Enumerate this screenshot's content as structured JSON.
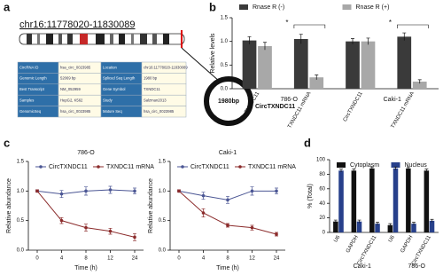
{
  "panel_labels": [
    "a",
    "b",
    "c",
    "d"
  ],
  "diagram": {
    "locus": "chr16:11778020-11830089",
    "table": [
      [
        "CircRNA ID",
        "hsa_circ_0023985",
        "Location",
        "chr16:11778020-11830089"
      ],
      [
        "Genomic Length",
        "52069 bp",
        "Spliced Seq Length",
        "1980 bp"
      ],
      [
        "Best Transcript",
        "NM_052959",
        "Gene Symbol",
        "TXNDC11"
      ],
      [
        "Samples",
        "HepG2, K562",
        "Study",
        "Salzman2013"
      ],
      [
        "GenomicSeq",
        "hsa_circ_0023985",
        "Mature Seq",
        "hsa_circ_0023985"
      ]
    ],
    "circle_size": "1980bp",
    "circle_name": "CircTXNDC11"
  },
  "chart_data": [
    {
      "type": "bar",
      "ylabel": "Relative levels",
      "categories": [
        "CircTXNDC11",
        "TXNDC11 mRNA",
        "CircTXNDC11",
        "TXNDC11 mRNA"
      ],
      "group_labels": [
        "786-O",
        "Caki-1"
      ],
      "series": [
        {
          "name": "Rnase R (-)",
          "color": "#3a3a3a",
          "values": [
            1.02,
            1.05,
            1.0,
            1.1
          ],
          "errors": [
            0.08,
            0.1,
            0.06,
            0.08
          ]
        },
        {
          "name": "Rnase R (+)",
          "color": "#a8a8a8",
          "values": [
            0.9,
            0.24,
            1.0,
            0.15
          ],
          "errors": [
            0.08,
            0.05,
            0.07,
            0.04
          ]
        }
      ],
      "annotations": [
        "*",
        "*"
      ],
      "ylim": [
        0,
        1.5
      ],
      "yticks": [
        {
          "value": 0,
          "label": "0.0"
        },
        {
          "value": 0.5,
          "label": "0.5"
        },
        {
          "value": 1,
          "label": "1.0"
        },
        {
          "value": 1.5,
          "label": "1.5"
        }
      ],
      "legend": "top"
    },
    {
      "type": "line",
      "title": "786-O",
      "xlabel": "Time (h)",
      "ylabel": "Relative abundance",
      "categories": [
        "0",
        "4",
        "8",
        "12",
        "24"
      ],
      "series": [
        {
          "name": "CircTXNDC11",
          "color": "#4b5694",
          "values": [
            1.0,
            0.95,
            1.0,
            1.02,
            1.0
          ],
          "errors": [
            0.02,
            0.06,
            0.07,
            0.06,
            0.05
          ]
        },
        {
          "name": "TXNDC11 mRNA",
          "color": "#8b2b2b",
          "values": [
            1.0,
            0.5,
            0.38,
            0.32,
            0.22
          ],
          "errors": [
            0.02,
            0.05,
            0.06,
            0.05,
            0.06
          ]
        }
      ],
      "ylim": [
        0,
        1.5
      ],
      "yticks": [
        {
          "value": 0,
          "label": "0.0"
        },
        {
          "value": 0.5,
          "label": "0.5"
        },
        {
          "value": 1,
          "label": "1.0"
        },
        {
          "value": 1.5,
          "label": "1.5"
        }
      ],
      "legend": "top"
    },
    {
      "type": "line",
      "title": "Caki-1",
      "xlabel": "Time (h)",
      "ylabel": "Relative abundance",
      "categories": [
        "0",
        "4",
        "8",
        "12",
        "24"
      ],
      "series": [
        {
          "name": "CircTXNDC11",
          "color": "#4b5694",
          "values": [
            1.0,
            0.92,
            0.85,
            1.0,
            1.0
          ],
          "errors": [
            0.02,
            0.06,
            0.06,
            0.07,
            0.05
          ]
        },
        {
          "name": "TXNDC11 mRNA",
          "color": "#8b2b2b",
          "values": [
            1.0,
            0.63,
            0.42,
            0.38,
            0.27
          ],
          "errors": [
            0.02,
            0.07,
            0.03,
            0.04,
            0.03
          ]
        }
      ],
      "ylim": [
        0,
        1.5
      ],
      "yticks": [
        {
          "value": 0,
          "label": "0.0"
        },
        {
          "value": 0.5,
          "label": "0.5"
        },
        {
          "value": 1,
          "label": "1.0"
        },
        {
          "value": 1.5,
          "label": "1.5"
        }
      ],
      "legend": "top"
    },
    {
      "type": "bar",
      "ylabel": "% (Total)",
      "categories": [
        "U6",
        "GAPDH",
        "CircTXNDC11",
        "U6",
        "GAPDH",
        "CircTXNDC11"
      ],
      "group_labels": [
        "Caki-1",
        "786-O"
      ],
      "series": [
        {
          "name": "Cytoplasm",
          "color": "#111111",
          "values": [
            15,
            85,
            88,
            10,
            88,
            85
          ],
          "errors": [
            2,
            2,
            2,
            2,
            2,
            2
          ]
        },
        {
          "name": "Nucleus",
          "color": "#27408b",
          "values": [
            85,
            15,
            12,
            88,
            12,
            16
          ],
          "errors": [
            2,
            2,
            2,
            2,
            2,
            2
          ]
        }
      ],
      "ylim": [
        0,
        100
      ],
      "yticks": [
        0,
        20,
        40,
        60,
        80,
        100
      ],
      "legend": "top"
    }
  ]
}
